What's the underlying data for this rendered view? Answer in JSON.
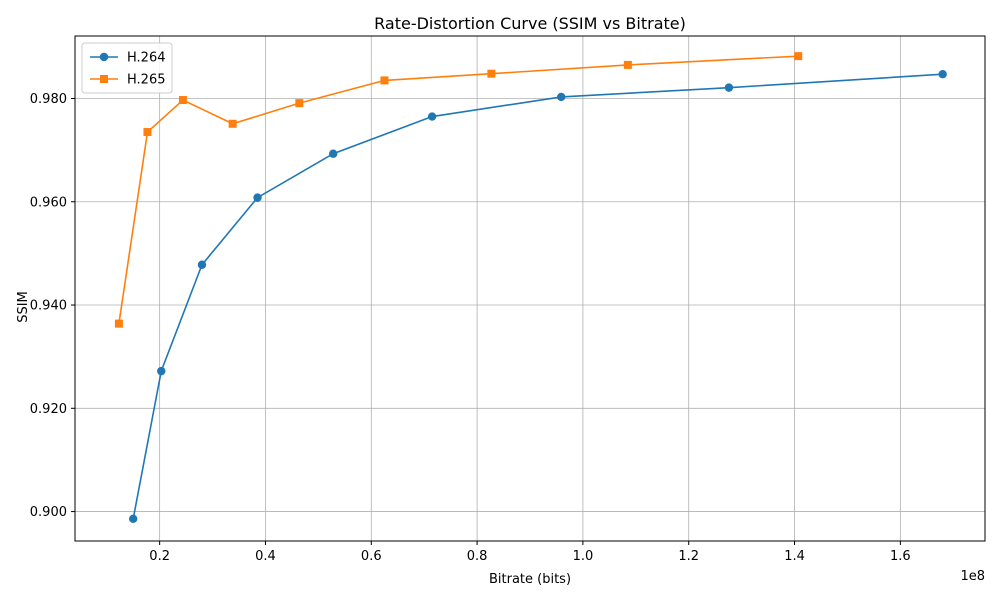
{
  "chart_data": {
    "type": "line",
    "title": "Rate-Distortion Curve (SSIM vs Bitrate)",
    "xlabel": "Bitrate (bits)",
    "ylabel": "SSIM",
    "x_offset_label": "1e8",
    "xlim": [
      4000000,
      176000000
    ],
    "ylim": [
      0.8943,
      0.9921
    ],
    "x_ticks": [
      20000000,
      40000000,
      60000000,
      80000000,
      100000000,
      120000000,
      140000000,
      160000000
    ],
    "x_tick_labels": [
      "0.2",
      "0.4",
      "0.6",
      "0.8",
      "1.0",
      "1.2",
      "1.4",
      "1.6"
    ],
    "y_ticks": [
      0.9,
      0.92,
      0.94,
      0.96,
      0.98
    ],
    "y_tick_labels": [
      "0.900",
      "0.920",
      "0.940",
      "0.960",
      "0.980"
    ],
    "grid": true,
    "legend_position": "top-left",
    "series": [
      {
        "name": "H.264",
        "color": "#1f77b4",
        "marker": "circle",
        "x": [
          15000000,
          20300000,
          28000000,
          38500000,
          52800000,
          71500000,
          95900000,
          127600000,
          168000000
        ],
        "y": [
          0.8986,
          0.9272,
          0.9478,
          0.9608,
          0.9693,
          0.9765,
          0.9803,
          0.9821,
          0.9847
        ]
      },
      {
        "name": "H.265",
        "color": "#ff7f0e",
        "marker": "square",
        "x": [
          12300000,
          17700000,
          24400000,
          33800000,
          46400000,
          62500000,
          82700000,
          108500000,
          140700000
        ],
        "y": [
          0.9364,
          0.9735,
          0.9797,
          0.9751,
          0.9791,
          0.9835,
          0.9848,
          0.9865,
          0.9882
        ]
      }
    ]
  }
}
